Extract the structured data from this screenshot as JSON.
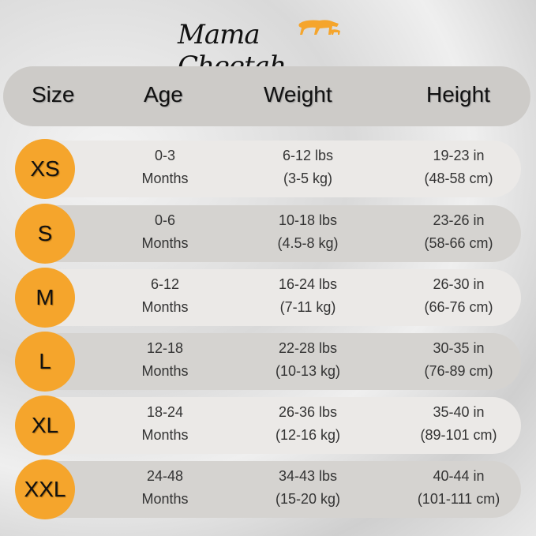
{
  "brand": {
    "name": "Mama Cheetah",
    "accent": "#f5a52c"
  },
  "headers": [
    "Size",
    "Age",
    "Weight",
    "Height"
  ],
  "rows": [
    {
      "size": "XS",
      "age": [
        "0-3",
        "Months"
      ],
      "weight": [
        "6-12 lbs",
        "(3-5 kg)"
      ],
      "height": [
        "19-23 in",
        "(48-58 cm)"
      ]
    },
    {
      "size": "S",
      "age": [
        "0-6",
        "Months"
      ],
      "weight": [
        "10-18 lbs",
        "(4.5-8 kg)"
      ],
      "height": [
        "23-26 in",
        "(58-66 cm)"
      ]
    },
    {
      "size": "M",
      "age": [
        "6-12",
        "Months"
      ],
      "weight": [
        "16-24 lbs",
        "(7-11 kg)"
      ],
      "height": [
        "26-30 in",
        "(66-76 cm)"
      ]
    },
    {
      "size": "L",
      "age": [
        "12-18",
        "Months"
      ],
      "weight": [
        "22-28 lbs",
        "(10-13 kg)"
      ],
      "height": [
        "30-35 in",
        "(76-89 cm)"
      ]
    },
    {
      "size": "XL",
      "age": [
        "18-24",
        "Months"
      ],
      "weight": [
        "26-36 lbs",
        "(12-16 kg)"
      ],
      "height": [
        "35-40 in",
        "(89-101 cm)"
      ]
    },
    {
      "size": "XXL",
      "age": [
        "24-48",
        "Months"
      ],
      "weight": [
        "34-43 lbs",
        "(15-20 kg)"
      ],
      "height": [
        "40-44 in",
        "(101-111 cm)"
      ]
    }
  ]
}
